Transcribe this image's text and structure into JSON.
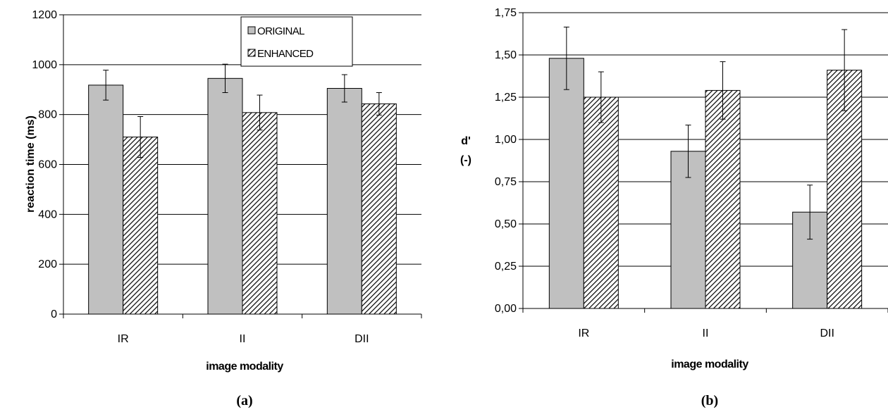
{
  "colors": {
    "original_fill": "#c0c0c0",
    "enhanced_fill": "#ffffff",
    "hatch": "#000000",
    "gridline": "#000000",
    "plot_background": "#ffffff"
  },
  "chart_data": [
    {
      "type": "bar",
      "caption": "(a)",
      "categories": [
        "IR",
        "II",
        "DII"
      ],
      "xlabel": "image modality",
      "ylabel": "reaction time (ms)",
      "ylim": [
        0,
        1200
      ],
      "yticks": [
        0,
        200,
        400,
        600,
        800,
        1000,
        1200
      ],
      "ytick_labels": [
        "0",
        "200",
        "400",
        "600",
        "800",
        "1000",
        "1200"
      ],
      "grid": true,
      "legend": "top-right",
      "series": [
        {
          "name": "ORIGINAL",
          "values": [
            918,
            945,
            905
          ],
          "errors": [
            60,
            57,
            55
          ],
          "pattern": "solid"
        },
        {
          "name": "ENHANCED",
          "values": [
            710,
            808,
            843
          ],
          "errors": [
            82,
            70,
            45
          ],
          "pattern": "hatched"
        }
      ]
    },
    {
      "type": "bar",
      "caption": "(b)",
      "categories": [
        "IR",
        "II",
        "DII"
      ],
      "xlabel": "image modality",
      "ylabel": "d'",
      "ylabel_unit": "(-)",
      "ylim": [
        0,
        1.75
      ],
      "yticks": [
        0,
        0.25,
        0.5,
        0.75,
        1.0,
        1.25,
        1.5,
        1.75
      ],
      "ytick_labels": [
        "0,00",
        "0,25",
        "0,50",
        "0,75",
        "1,00",
        "1,25",
        "1,50",
        "1,75"
      ],
      "grid": true,
      "series": [
        {
          "name": "ORIGINAL",
          "values": [
            1.48,
            0.93,
            0.57
          ],
          "errors": [
            0.185,
            0.155,
            0.16
          ],
          "pattern": "solid"
        },
        {
          "name": "ENHANCED",
          "values": [
            1.25,
            1.29,
            1.41
          ],
          "errors": [
            0.15,
            0.17,
            0.24
          ],
          "pattern": "hatched"
        }
      ]
    }
  ]
}
